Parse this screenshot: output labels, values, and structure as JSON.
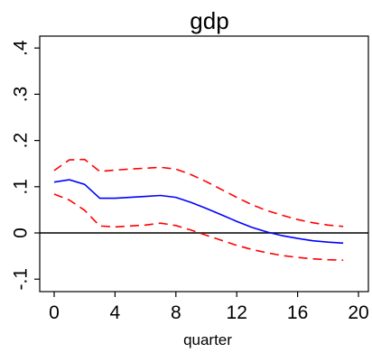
{
  "chart_data": {
    "type": "line",
    "title": "gdp",
    "xlabel": "quarter",
    "ylabel": "",
    "xlim": [
      0,
      19
    ],
    "ylim": [
      -0.1,
      0.4
    ],
    "x_ticks": [
      0,
      4,
      8,
      12,
      16,
      20
    ],
    "x_tick_labels": [
      "0",
      "4",
      "8",
      "12",
      "16",
      "20"
    ],
    "y_ticks": [
      -0.1,
      0,
      0.1,
      0.2,
      0.3,
      0.4
    ],
    "y_tick_labels": [
      "-.1",
      "0",
      ".1",
      ".2",
      ".3",
      ".4"
    ],
    "reference_line_y": 0,
    "grid": false,
    "legend": "none",
    "x": [
      0,
      1,
      2,
      3,
      4,
      5,
      6,
      7,
      8,
      9,
      10,
      11,
      12,
      13,
      14,
      15,
      16,
      17,
      18,
      19
    ],
    "series": [
      {
        "role": "upper band",
        "color": "#ff0000",
        "dash": true,
        "values": [
          0.135,
          0.158,
          0.159,
          0.133,
          0.136,
          0.138,
          0.14,
          0.142,
          0.138,
          0.126,
          0.111,
          0.094,
          0.077,
          0.061,
          0.048,
          0.038,
          0.029,
          0.022,
          0.017,
          0.014
        ]
      },
      {
        "role": "point estimate",
        "color": "#0000ff",
        "dash": false,
        "values": [
          0.11,
          0.115,
          0.105,
          0.075,
          0.075,
          0.077,
          0.079,
          0.081,
          0.077,
          0.066,
          0.053,
          0.039,
          0.025,
          0.012,
          0.002,
          -0.006,
          -0.012,
          -0.017,
          -0.02,
          -0.022
        ]
      },
      {
        "role": "lower band",
        "color": "#ff0000",
        "dash": true,
        "values": [
          0.084,
          0.071,
          0.049,
          0.015,
          0.013,
          0.015,
          0.017,
          0.021,
          0.016,
          0.006,
          -0.005,
          -0.016,
          -0.027,
          -0.036,
          -0.043,
          -0.049,
          -0.053,
          -0.056,
          -0.058,
          -0.059
        ]
      }
    ]
  }
}
